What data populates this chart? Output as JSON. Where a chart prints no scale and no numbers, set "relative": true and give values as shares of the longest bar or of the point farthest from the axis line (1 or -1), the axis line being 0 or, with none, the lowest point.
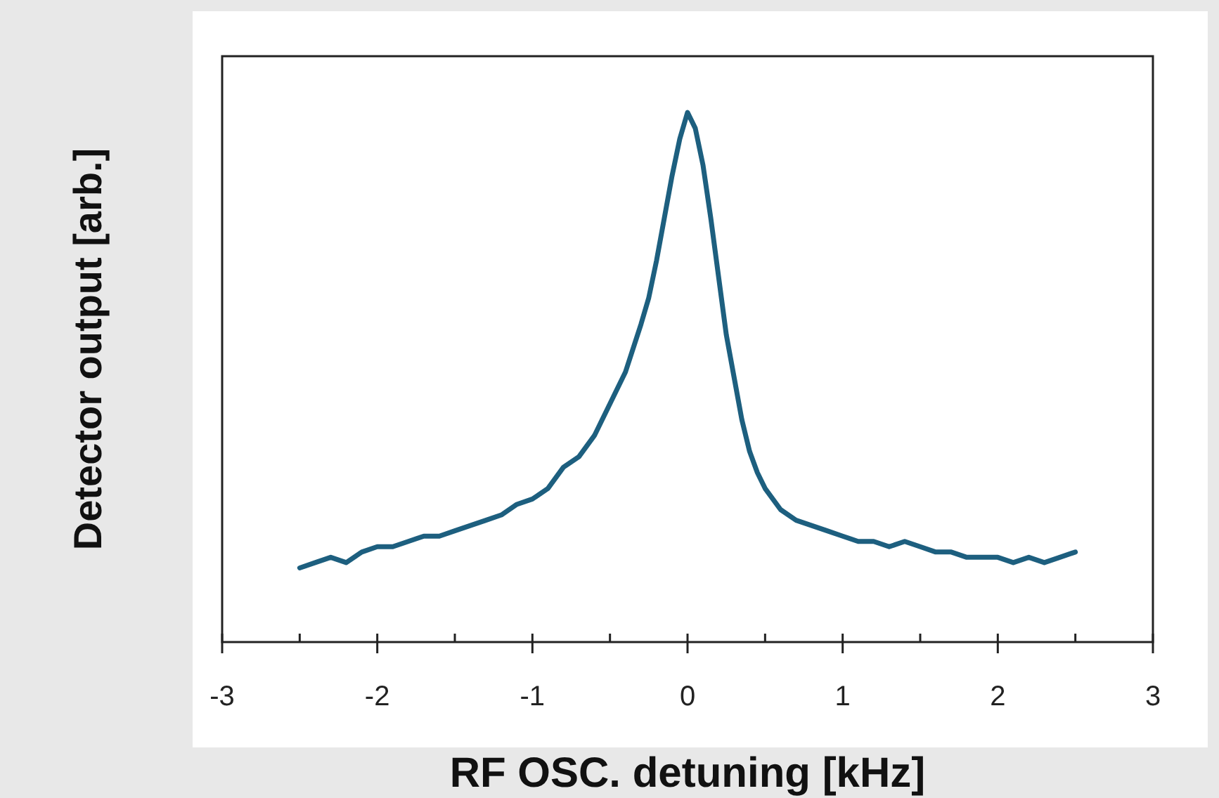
{
  "chart_data": {
    "type": "line",
    "xlabel": "RF OSC. detuning [kHz]",
    "ylabel": "Detector output [arb.]",
    "relative": true,
    "xlim": [
      -3,
      3
    ],
    "xticks": [
      -3,
      -2,
      -1,
      0,
      1,
      2,
      3
    ],
    "marker": "none",
    "line_style": "solid",
    "series": [
      {
        "color": "#1d5f7f",
        "x": [
          -2.5,
          -2.4,
          -2.3,
          -2.2,
          -2.1,
          -2.0,
          -1.9,
          -1.8,
          -1.7,
          -1.6,
          -1.5,
          -1.4,
          -1.3,
          -1.2,
          -1.1,
          -1.0,
          -0.9,
          -0.8,
          -0.7,
          -0.6,
          -0.5,
          -0.4,
          -0.3,
          -0.25,
          -0.2,
          -0.15,
          -0.1,
          -0.05,
          0,
          0.05,
          0.1,
          0.15,
          0.2,
          0.25,
          0.3,
          0.35,
          0.4,
          0.45,
          0.5,
          0.6,
          0.7,
          0.8,
          0.9,
          1.0,
          1.1,
          1.2,
          1.3,
          1.4,
          1.5,
          1.6,
          1.7,
          1.8,
          1.9,
          2.0,
          2.1,
          2.2,
          2.3,
          2.4,
          2.5
        ],
        "values": [
          0.14,
          0.15,
          0.16,
          0.15,
          0.17,
          0.18,
          0.18,
          0.19,
          0.2,
          0.2,
          0.21,
          0.22,
          0.23,
          0.24,
          0.26,
          0.27,
          0.29,
          0.33,
          0.35,
          0.39,
          0.45,
          0.51,
          0.6,
          0.65,
          0.72,
          0.8,
          0.88,
          0.95,
          1.0,
          0.97,
          0.9,
          0.8,
          0.69,
          0.58,
          0.5,
          0.42,
          0.36,
          0.32,
          0.29,
          0.25,
          0.23,
          0.22,
          0.21,
          0.2,
          0.19,
          0.19,
          0.18,
          0.19,
          0.18,
          0.17,
          0.17,
          0.16,
          0.16,
          0.16,
          0.15,
          0.16,
          0.15,
          0.16,
          0.17
        ]
      }
    ]
  }
}
